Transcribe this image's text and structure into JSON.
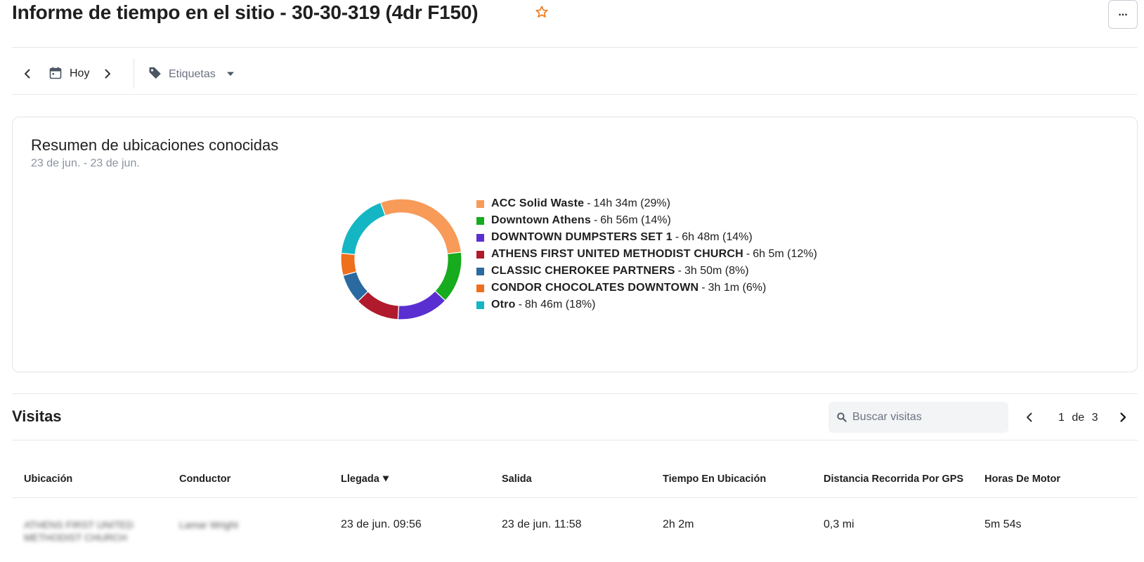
{
  "header": {
    "title": "Informe de tiempo en el sitio - 30-30-319 (4dr F150)",
    "star_icon": "star-outline-icon",
    "more_label": "..."
  },
  "toolbar": {
    "prev_icon": "chevron-left-icon",
    "calendar_icon": "calendar-icon",
    "date_label": "Hoy",
    "next_icon": "chevron-right-icon",
    "tag_icon": "tag-icon",
    "tags_label": "Etiquetas",
    "tags_caret": "caret-down-icon"
  },
  "summary": {
    "title": "Resumen de ubicaciones conocidas",
    "date_range": "23 de jun. - 23 de jun."
  },
  "chart_data": {
    "type": "pie",
    "donut": true,
    "categories": [
      "ACC Solid Waste",
      "Downtown Athens",
      "DOWNTOWN DUMPSTERS SET 1",
      "ATHENS FIRST UNITED METHODIST CHURCH",
      "CLASSIC CHEROKEE PARTNERS",
      "CONDOR CHOCOLATES DOWNTOWN",
      "Otro"
    ],
    "durations": [
      "14h 34m",
      "6h 56m",
      "6h 48m",
      "6h 5m",
      "3h 50m",
      "3h 1m",
      "8h 46m"
    ],
    "percent_labels": [
      "(29%)",
      "(14%)",
      "(14%)",
      "(12%)",
      "(8%)",
      "(6%)",
      "(18%)"
    ],
    "values": [
      29,
      14,
      14,
      12,
      8,
      6,
      18
    ],
    "colors": [
      "#f89a58",
      "#17ab1e",
      "#5a2fd1",
      "#b01a2c",
      "#2b6aa0",
      "#ee6f1c",
      "#14b6c4"
    ],
    "legend_position": "right",
    "title": "",
    "xlabel": "",
    "ylabel": ""
  },
  "visits": {
    "title": "Visitas",
    "search_placeholder": "Buscar visitas",
    "search_value": "",
    "pager": {
      "current": "1",
      "of_label": "de",
      "total": "3"
    },
    "columns": [
      "Ubicación",
      "Conductor",
      "Llegada",
      "Salida",
      "Tiempo En Ubicación",
      "Distancia Recorrida Por GPS",
      "Horas De Motor"
    ],
    "rows": [
      {
        "location": "ATHENS FIRST UNITED METHODIST CHURCH",
        "driver": "Lamar Wright",
        "arrival": "23 de jun. 09:56",
        "departure": "23 de jun. 11:58",
        "time_at_location": "2h 2m",
        "gps_distance": "0,3 mi",
        "engine_hours": "5m 54s"
      }
    ]
  }
}
